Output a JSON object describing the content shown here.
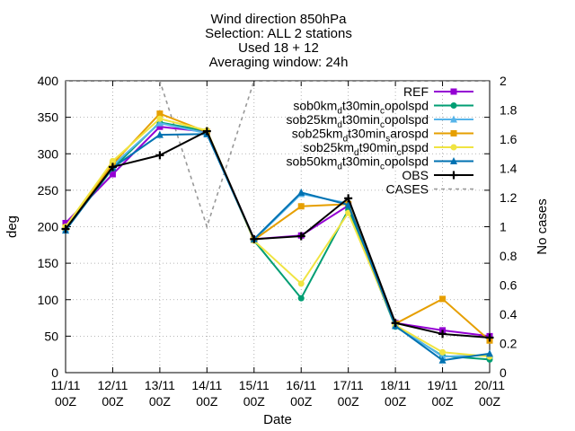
{
  "chart_data": {
    "type": "line",
    "title_lines": [
      "Wind direction 850hPa",
      "Selection: ALL      2 stations",
      "Used 18 + 12",
      "Averaging window: 24h"
    ],
    "xlabel": "Date",
    "ylabel": "deg",
    "y2label": "No cases",
    "x_ticks": [
      {
        "top": "11/11",
        "bottom": "00Z"
      },
      {
        "top": "12/11",
        "bottom": "00Z"
      },
      {
        "top": "13/11",
        "bottom": "00Z"
      },
      {
        "top": "14/11",
        "bottom": "00Z"
      },
      {
        "top": "15/11",
        "bottom": "00Z"
      },
      {
        "top": "16/11",
        "bottom": "00Z"
      },
      {
        "top": "17/11",
        "bottom": "00Z"
      },
      {
        "top": "18/11",
        "bottom": "00Z"
      },
      {
        "top": "19/11",
        "bottom": "00Z"
      },
      {
        "top": "20/11",
        "bottom": "00Z"
      }
    ],
    "ylim": [
      0,
      400
    ],
    "y_ticks": [
      "0",
      "50",
      "100",
      "150",
      "200",
      "250",
      "300",
      "350",
      "400"
    ],
    "y2lim": [
      0,
      2
    ],
    "y2_ticks": [
      "0",
      "0.2",
      "0.4",
      "0.6",
      "0.8",
      "1",
      "1.2",
      "1.4",
      "1.6",
      "1.8",
      "2"
    ],
    "grid": true,
    "legend_position": "top-right",
    "series": [
      {
        "name": "REF",
        "name_parts": [
          [
            "REF",
            "n"
          ]
        ],
        "color": "#9400d3",
        "marker": "square",
        "dashed": false,
        "axis": "y",
        "values": [
          205,
          272,
          337,
          330,
          183,
          188,
          229,
          68,
          58,
          50
        ]
      },
      {
        "name": "sob0kmdt30mincopolspd",
        "name_parts": [
          [
            "sob0km",
            "n"
          ],
          [
            "d",
            "s"
          ],
          [
            "t30min",
            "n"
          ],
          [
            "c",
            "s"
          ],
          [
            "opolspd",
            "n"
          ]
        ],
        "color": "#009e73",
        "marker": "circle",
        "dashed": false,
        "axis": "y",
        "values": [
          196,
          280,
          343,
          331,
          181,
          102,
          223,
          63,
          23,
          18
        ]
      },
      {
        "name": "sob25kmdt30mincopolspd",
        "name_parts": [
          [
            "sob25km",
            "n"
          ],
          [
            "d",
            "s"
          ],
          [
            "t30min",
            "n"
          ],
          [
            "c",
            "s"
          ],
          [
            "opolspd",
            "n"
          ]
        ],
        "color": "#56b4e9",
        "marker": "triangle",
        "dashed": false,
        "axis": "y",
        "values": [
          198,
          284,
          342,
          328,
          182,
          245,
          232,
          65,
          22,
          24
        ]
      },
      {
        "name": "sob25kmdt30minsarospd",
        "name_parts": [
          [
            "sob25km",
            "n"
          ],
          [
            "d",
            "s"
          ],
          [
            "t30min",
            "n"
          ],
          [
            "s",
            "s"
          ],
          [
            "arospd",
            "n"
          ]
        ],
        "color": "#e69f00",
        "marker": "square",
        "dashed": false,
        "axis": "y",
        "values": [
          199,
          286,
          355,
          330,
          182,
          228,
          231,
          67,
          101,
          44
        ]
      },
      {
        "name": "sob25kmdt90mincpspd",
        "name_parts": [
          [
            "sob25km",
            "n"
          ],
          [
            "d",
            "s"
          ],
          [
            "t90min",
            "n"
          ],
          [
            "c",
            "s"
          ],
          [
            "pspd",
            "n"
          ]
        ],
        "color": "#f0e442",
        "marker": "circle",
        "dashed": false,
        "axis": "y",
        "values": [
          200,
          290,
          348,
          332,
          181,
          122,
          219,
          65,
          28,
          22
        ]
      },
      {
        "name": "sob50kmdt30mincopolspd",
        "name_parts": [
          [
            "sob50km",
            "n"
          ],
          [
            "d",
            "s"
          ],
          [
            "t30min",
            "n"
          ],
          [
            "c",
            "s"
          ],
          [
            "opolspd",
            "n"
          ]
        ],
        "color": "#0072b2",
        "marker": "triangle",
        "dashed": false,
        "axis": "y",
        "values": [
          195,
          281,
          326,
          327,
          183,
          247,
          230,
          64,
          17,
          26
        ]
      },
      {
        "name": "OBS",
        "name_parts": [
          [
            "OBS",
            "n"
          ]
        ],
        "color": "#000000",
        "marker": "cross",
        "dashed": false,
        "axis": "y",
        "values": [
          197,
          282,
          298,
          331,
          183,
          187,
          239,
          68,
          53,
          48
        ]
      },
      {
        "name": "CASES",
        "name_parts": [
          [
            "CASES",
            "n"
          ]
        ],
        "color": "#999999",
        "marker": "none",
        "dashed": true,
        "axis": "y2",
        "values": [
          2,
          2,
          2,
          1,
          2,
          2,
          2,
          2,
          2,
          2
        ]
      }
    ]
  }
}
